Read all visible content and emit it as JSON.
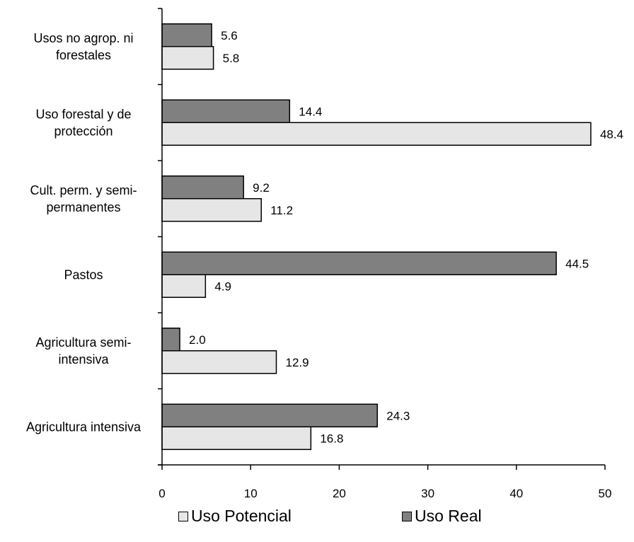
{
  "chart_data": {
    "type": "bar",
    "orientation": "horizontal",
    "categories": [
      [
        "Usos no agrop. ni",
        "forestales"
      ],
      [
        "Uso forestal y de",
        "protección"
      ],
      [
        "Cult. perm. y semi-",
        "permanentes"
      ],
      [
        "Pastos"
      ],
      [
        "Agricultura semi-",
        "intensiva"
      ],
      [
        "Agricultura intensiva"
      ]
    ],
    "series": [
      {
        "name": "Uso Real",
        "color": "#808080",
        "values": [
          5.6,
          14.4,
          9.2,
          44.5,
          2.0,
          24.3
        ]
      },
      {
        "name": "Uso Potencial",
        "color": "#e6e6e6",
        "values": [
          5.8,
          48.4,
          11.2,
          4.9,
          12.9,
          16.8
        ]
      }
    ],
    "xlim": [
      0,
      50
    ],
    "xticks": [
      0,
      10,
      20,
      30,
      40,
      50
    ],
    "grid": false,
    "legend": {
      "position": "bottom",
      "entries": [
        {
          "name": "Uso Potencial",
          "color": "#e6e6e6"
        },
        {
          "name": "Uso Real",
          "color": "#808080"
        }
      ]
    }
  }
}
